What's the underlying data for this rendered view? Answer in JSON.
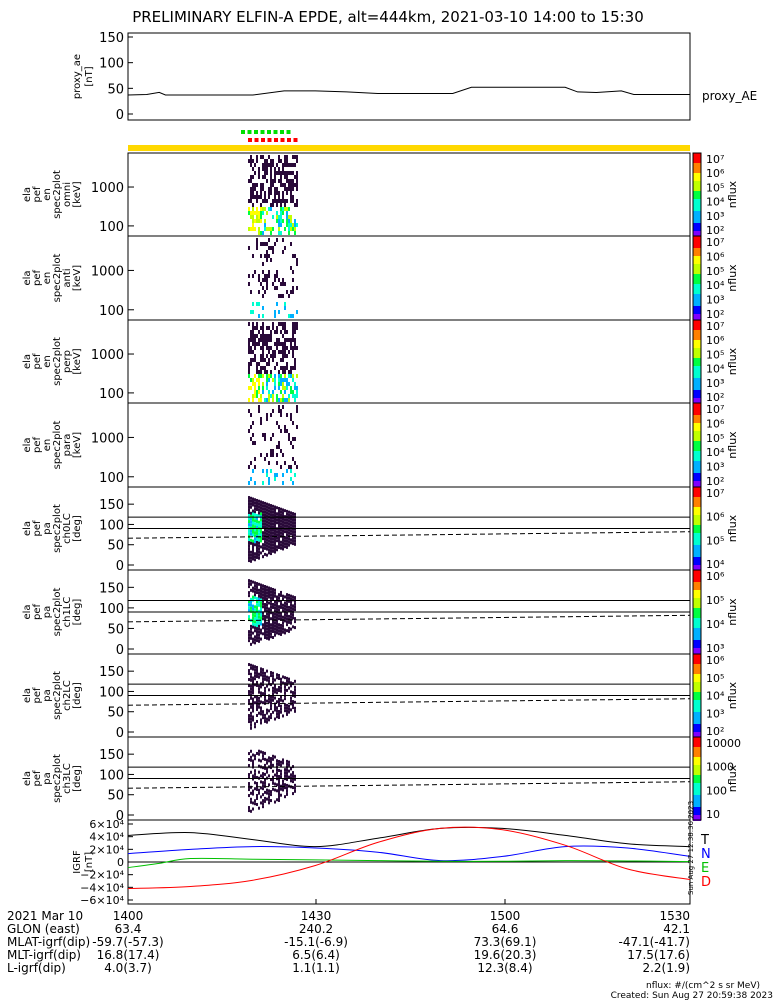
{
  "title": "PRELIMINARY ELFIN-A EPDE, alt=444km, 2021-03-10 14:00 to 15:30",
  "colors": {
    "frame": "#000000",
    "yellow_bar": "#ffd800",
    "green_marks": "#00e000",
    "red_marks": "#ff0000",
    "T": "#000000",
    "N": "#0000ff",
    "E": "#00c000",
    "D": "#ff0000"
  },
  "chart_data": [
    {
      "id": "proxy_ae",
      "type": "line",
      "ylabel_lines": [
        "proxy_ae",
        "[nT]"
      ],
      "series_label": "proxy_AE",
      "yticks": [
        "0",
        "50",
        "100",
        "150"
      ],
      "ylim": [
        0,
        150
      ],
      "xlim": [
        0,
        90
      ],
      "x": [
        0,
        3,
        5,
        6,
        8,
        15,
        20,
        25,
        30,
        35,
        40,
        48,
        50,
        52,
        55,
        60,
        65,
        67,
        70,
        72,
        75,
        79,
        81,
        85,
        90
      ],
      "y": [
        37,
        38,
        42,
        37,
        37,
        37,
        37,
        45,
        45,
        43,
        40,
        40,
        40,
        40,
        52,
        52,
        52,
        52,
        52,
        43,
        42,
        45,
        38,
        38,
        38
      ]
    },
    {
      "id": "omni",
      "type": "heatmap",
      "ylabel_lines": [
        "ela",
        "pef",
        "en",
        "spec2plot",
        "omni",
        "[keV]"
      ],
      "yticks": [
        "100",
        "1000"
      ],
      "colorbar_label": "nflux",
      "colorbar_ticks": [
        "10⁷",
        "10⁶",
        "10⁵",
        "10⁴",
        "10³",
        "10²"
      ]
    },
    {
      "id": "anti",
      "type": "heatmap",
      "ylabel_lines": [
        "ela",
        "pef",
        "en",
        "spec2plot",
        "anti",
        "[keV]"
      ],
      "yticks": [
        "100",
        "1000"
      ],
      "colorbar_label": "nflux",
      "colorbar_ticks": [
        "10⁷",
        "10⁶",
        "10⁵",
        "10⁴",
        "10³",
        "10²"
      ]
    },
    {
      "id": "perp",
      "type": "heatmap",
      "ylabel_lines": [
        "ela",
        "pef",
        "en",
        "spec2plot",
        "perp",
        "[keV]"
      ],
      "yticks": [
        "100",
        "1000"
      ],
      "colorbar_label": "nflux",
      "colorbar_ticks": [
        "10⁷",
        "10⁶",
        "10⁵",
        "10⁴",
        "10³",
        "10²"
      ]
    },
    {
      "id": "para",
      "type": "heatmap",
      "ylabel_lines": [
        "ela",
        "pef",
        "en",
        "spec2plot",
        "para",
        "[keV]"
      ],
      "yticks": [
        "100",
        "1000"
      ],
      "colorbar_label": "nflux",
      "colorbar_ticks": [
        "10⁷",
        "10⁶",
        "10⁵",
        "10⁴",
        "10³",
        "10²"
      ]
    },
    {
      "id": "ch0LC",
      "type": "heatmap",
      "ylabel_lines": [
        "ela",
        "pef",
        "pa",
        "spec2plot",
        "ch0LC",
        "[deg]"
      ],
      "yticks": [
        "0",
        "50",
        "100",
        "150"
      ],
      "colorbar_label": "nflux",
      "colorbar_ticks": [
        "10⁷",
        "10⁶",
        "10⁵",
        "10⁴"
      ]
    },
    {
      "id": "ch1LC",
      "type": "heatmap",
      "ylabel_lines": [
        "ela",
        "pef",
        "pa",
        "spec2plot",
        "ch1LC",
        "[deg]"
      ],
      "yticks": [
        "0",
        "50",
        "100",
        "150"
      ],
      "colorbar_label": "nflux",
      "colorbar_ticks": [
        "10⁶",
        "10⁵",
        "10⁴",
        "10³"
      ]
    },
    {
      "id": "ch2LC",
      "type": "heatmap",
      "ylabel_lines": [
        "ela",
        "pef",
        "pa",
        "spec2plot",
        "ch2LC",
        "[deg]"
      ],
      "yticks": [
        "0",
        "50",
        "100",
        "150"
      ],
      "colorbar_label": "nflux",
      "colorbar_ticks": [
        "10⁶",
        "10⁵",
        "10⁴",
        "10³",
        "10²"
      ]
    },
    {
      "id": "ch3LC",
      "type": "heatmap",
      "ylabel_lines": [
        "ela",
        "pef",
        "pa",
        "spec2plot",
        "ch3LC",
        "[deg]"
      ],
      "yticks": [
        "0",
        "50",
        "100",
        "150"
      ],
      "colorbar_label": "nflux",
      "colorbar_ticks": [
        "10000",
        "1000",
        "100",
        "10"
      ]
    },
    {
      "id": "igrf",
      "type": "line",
      "ylabel_lines": [
        "IGRF",
        "[nT]"
      ],
      "yticks": [
        "6×10⁴",
        "4×10⁴",
        "2×10⁴",
        "0",
        "−2×10⁴",
        "−4×10⁴",
        "−6×10⁴"
      ],
      "ylim": [
        -60000,
        60000
      ],
      "xlim": [
        0,
        90
      ],
      "legend": [
        "T",
        "N",
        "E",
        "D"
      ],
      "series": [
        {
          "name": "T",
          "x": [
            0,
            10,
            20,
            30,
            40,
            50,
            60,
            70,
            80,
            90
          ],
          "y": [
            38000,
            42000,
            32000,
            22000,
            34000,
            48000,
            48000,
            38000,
            26000,
            22000
          ]
        },
        {
          "name": "N",
          "x": [
            0,
            10,
            20,
            30,
            40,
            50,
            60,
            70,
            80,
            90
          ],
          "y": [
            12000,
            18000,
            22000,
            20000,
            14000,
            2000,
            8000,
            22000,
            20000,
            8000
          ]
        },
        {
          "name": "E",
          "x": [
            0,
            5,
            10,
            20,
            30,
            40,
            50,
            60,
            70,
            80,
            90
          ],
          "y": [
            -8000,
            -2000,
            5000,
            4000,
            3000,
            2000,
            1000,
            1000,
            2000,
            1500,
            500
          ]
        },
        {
          "name": "D",
          "x": [
            0,
            10,
            20,
            30,
            40,
            50,
            60,
            70,
            80,
            90
          ],
          "y": [
            -38000,
            -35000,
            -26000,
            -5000,
            28000,
            48000,
            46000,
            24000,
            -10000,
            -25000
          ]
        }
      ],
      "side_text": "Sun Aug 27  12:38:36  2023"
    }
  ],
  "footer": {
    "rows": [
      {
        "label": "2021 Mar 10",
        "values": [
          "1400",
          "1430",
          "1500",
          "1530"
        ]
      },
      {
        "label": "GLON (east)",
        "values": [
          "63.4",
          "240.2",
          "64.6",
          "42.1"
        ]
      },
      {
        "label": "MLAT-igrf(dip)",
        "values": [
          "-59.7(-57.3)",
          "-15.1(-6.9)",
          "73.3(69.1)",
          "-47.1(-41.7)"
        ]
      },
      {
        "label": "MLT-igrf(dip)",
        "values": [
          "16.8(17.4)",
          "6.5(6.4)",
          "19.6(20.3)",
          "17.5(17.6)"
        ]
      },
      {
        "label": "L-igrf(dip)",
        "values": [
          "4.0(3.7)",
          "1.1(1.1)",
          "12.3(8.4)",
          "2.2(1.9)"
        ]
      }
    ],
    "units_note": "nflux: #/(cm^2 s sr MeV)",
    "created": "Created: Sun Aug 27 20:59:38 2023"
  }
}
